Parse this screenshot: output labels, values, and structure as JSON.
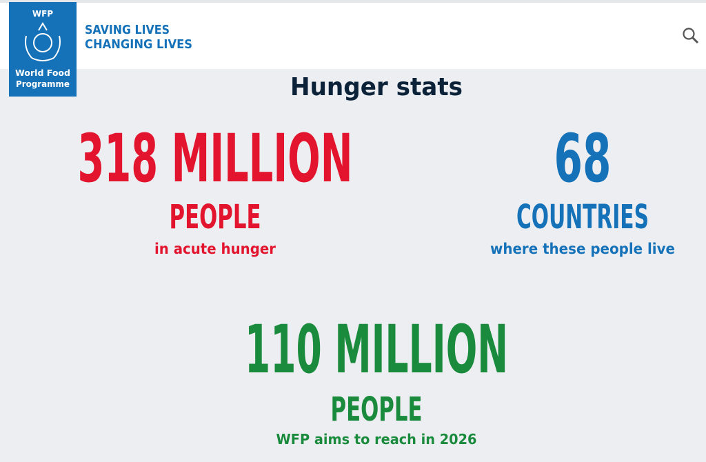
{
  "header": {
    "logo": {
      "acronym": "WFP",
      "name_line1": "World Food",
      "name_line2": "Programme"
    },
    "tagline": [
      "SAVING LIVES",
      "CHANGING LIVES"
    ]
  },
  "section": {
    "title": "Hunger stats",
    "stats": [
      {
        "number": "318 MILLION",
        "unit": "PEOPLE",
        "caption": "in acute hunger"
      },
      {
        "number": "68",
        "unit": "COUNTRIES",
        "caption": "where these people live"
      },
      {
        "number": "110 MILLION",
        "unit": "PEOPLE",
        "caption": "WFP aims to reach in 2026"
      }
    ]
  }
}
